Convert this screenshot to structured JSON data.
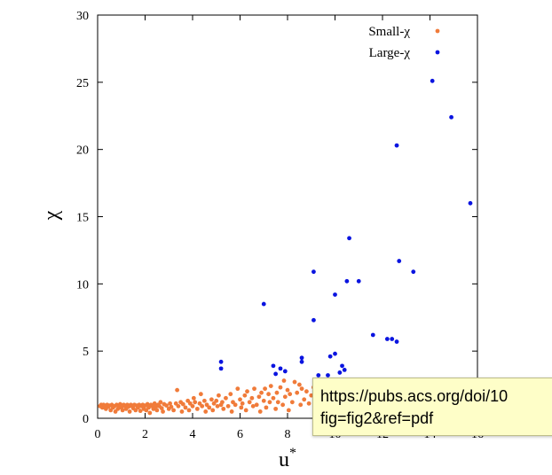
{
  "chart_data": {
    "type": "scatter",
    "xlabel": "u",
    "xlabel_superscript": "*",
    "ylabel": "χ",
    "xlim": [
      0,
      16
    ],
    "ylim": [
      0,
      30
    ],
    "xticks": [
      "0",
      "2",
      "4",
      "6",
      "8",
      "10",
      "12",
      "14",
      "16"
    ],
    "yticks": [
      "0",
      "5",
      "10",
      "15",
      "20",
      "25",
      "30"
    ],
    "grid": false,
    "legend_position": "top-right",
    "series": [
      {
        "name": "Small-χ",
        "color": "#f07b3a",
        "points": [
          [
            0.1,
            0.9
          ],
          [
            0.15,
            1.0
          ],
          [
            0.2,
            0.8
          ],
          [
            0.25,
            1.0
          ],
          [
            0.3,
            0.9
          ],
          [
            0.35,
            0.7
          ],
          [
            0.4,
            1.0
          ],
          [
            0.45,
            0.85
          ],
          [
            0.5,
            0.95
          ],
          [
            0.55,
            0.6
          ],
          [
            0.6,
            1.0
          ],
          [
            0.65,
            0.8
          ],
          [
            0.7,
            0.9
          ],
          [
            0.75,
            0.5
          ],
          [
            0.8,
            1.0
          ],
          [
            0.85,
            0.7
          ],
          [
            0.9,
            0.9
          ],
          [
            0.95,
            1.05
          ],
          [
            1.0,
            0.8
          ],
          [
            1.05,
            0.6
          ],
          [
            1.1,
            1.0
          ],
          [
            1.15,
            0.9
          ],
          [
            1.2,
            0.7
          ],
          [
            1.25,
            1.0
          ],
          [
            1.3,
            0.85
          ],
          [
            1.35,
            0.5
          ],
          [
            1.4,
            1.0
          ],
          [
            1.45,
            0.9
          ],
          [
            1.5,
            0.75
          ],
          [
            1.55,
            1.0
          ],
          [
            1.6,
            0.6
          ],
          [
            1.65,
            0.95
          ],
          [
            1.7,
            0.8
          ],
          [
            1.75,
            1.0
          ],
          [
            1.8,
            0.55
          ],
          [
            1.85,
            0.9
          ],
          [
            1.9,
            1.0
          ],
          [
            1.95,
            0.7
          ],
          [
            2.0,
            0.95
          ],
          [
            2.05,
            0.6
          ],
          [
            2.1,
            1.05
          ],
          [
            2.15,
            0.8
          ],
          [
            2.2,
            0.4
          ],
          [
            2.25,
            1.0
          ],
          [
            2.3,
            0.9
          ],
          [
            2.35,
            0.7
          ],
          [
            2.4,
            1.1
          ],
          [
            2.45,
            0.85
          ],
          [
            2.5,
            0.6
          ],
          [
            2.55,
            1.0
          ],
          [
            2.6,
            0.9
          ],
          [
            2.65,
            1.2
          ],
          [
            2.7,
            0.75
          ],
          [
            2.75,
            0.5
          ],
          [
            2.8,
            1.05
          ],
          [
            2.9,
            0.95
          ],
          [
            3.0,
            0.7
          ],
          [
            3.05,
            1.1
          ],
          [
            3.1,
            0.85
          ],
          [
            3.2,
            0.6
          ],
          [
            3.3,
            1.1
          ],
          [
            3.35,
            2.1
          ],
          [
            3.4,
            0.9
          ],
          [
            3.5,
            1.2
          ],
          [
            3.55,
            0.5
          ],
          [
            3.6,
            1.05
          ],
          [
            3.7,
            0.8
          ],
          [
            3.8,
            1.3
          ],
          [
            3.85,
            0.6
          ],
          [
            3.9,
            1.1
          ],
          [
            4.0,
            0.9
          ],
          [
            4.05,
            1.5
          ],
          [
            4.1,
            1.2
          ],
          [
            4.2,
            0.7
          ],
          [
            4.3,
            1.1
          ],
          [
            4.35,
            1.8
          ],
          [
            4.4,
            0.9
          ],
          [
            4.5,
            1.3
          ],
          [
            4.55,
            0.5
          ],
          [
            4.6,
            1.0
          ],
          [
            4.7,
            0.8
          ],
          [
            4.8,
            1.4
          ],
          [
            4.85,
            0.6
          ],
          [
            4.9,
            1.1
          ],
          [
            5.0,
            1.3
          ],
          [
            5.05,
            0.9
          ],
          [
            5.1,
            1.7
          ],
          [
            5.2,
            1.0
          ],
          [
            5.25,
            1.2
          ],
          [
            5.3,
            0.7
          ],
          [
            5.4,
            1.5
          ],
          [
            5.5,
            0.9
          ],
          [
            5.6,
            1.8
          ],
          [
            5.65,
            0.5
          ],
          [
            5.7,
            1.2
          ],
          [
            5.8,
            1.0
          ],
          [
            5.9,
            2.2
          ],
          [
            6.0,
            1.4
          ],
          [
            6.05,
            0.8
          ],
          [
            6.1,
            1.1
          ],
          [
            6.2,
            1.7
          ],
          [
            6.25,
            0.6
          ],
          [
            6.3,
            2.0
          ],
          [
            6.4,
            1.2
          ],
          [
            6.5,
            1.5
          ],
          [
            6.55,
            0.9
          ],
          [
            6.6,
            2.2
          ],
          [
            6.7,
            1.0
          ],
          [
            6.8,
            1.6
          ],
          [
            6.85,
            0.5
          ],
          [
            6.9,
            1.9
          ],
          [
            7.0,
            1.3
          ],
          [
            7.05,
            2.2
          ],
          [
            7.1,
            0.8
          ],
          [
            7.2,
            1.8
          ],
          [
            7.25,
            1.2
          ],
          [
            7.3,
            2.4
          ],
          [
            7.4,
            1.5
          ],
          [
            7.5,
            0.7
          ],
          [
            7.55,
            1.9
          ],
          [
            7.6,
            1.2
          ],
          [
            7.7,
            2.3
          ],
          [
            7.8,
            1.0
          ],
          [
            7.85,
            2.8
          ],
          [
            7.9,
            1.6
          ],
          [
            8.0,
            2.1
          ],
          [
            8.05,
            0.6
          ],
          [
            8.1,
            1.8
          ],
          [
            8.2,
            1.2
          ],
          [
            8.3,
            2.7
          ],
          [
            8.4,
            1.9
          ],
          [
            8.5,
            2.5
          ],
          [
            8.55,
            1.0
          ],
          [
            8.6,
            2.2
          ],
          [
            8.7,
            1.4
          ],
          [
            8.8,
            2.0
          ],
          [
            8.9,
            1.1
          ],
          [
            9.0,
            1.7
          ],
          [
            9.1,
            2.3
          ],
          [
            9.2,
            1.4
          ]
        ]
      },
      {
        "name": "Large-χ",
        "color": "#0a14e0",
        "points": [
          [
            5.2,
            4.2
          ],
          [
            5.2,
            3.7
          ],
          [
            7.0,
            8.5
          ],
          [
            7.4,
            3.9
          ],
          [
            7.5,
            3.3
          ],
          [
            7.7,
            3.7
          ],
          [
            7.9,
            3.5
          ],
          [
            8.6,
            4.5
          ],
          [
            8.6,
            4.2
          ],
          [
            9.1,
            10.9
          ],
          [
            9.1,
            7.3
          ],
          [
            9.3,
            3.2
          ],
          [
            9.7,
            3.2
          ],
          [
            9.8,
            4.6
          ],
          [
            10.0,
            9.2
          ],
          [
            10.0,
            4.8
          ],
          [
            10.2,
            3.4
          ],
          [
            10.3,
            3.9
          ],
          [
            10.4,
            3.6
          ],
          [
            10.5,
            10.2
          ],
          [
            10.6,
            13.4
          ],
          [
            11.0,
            10.2
          ],
          [
            11.6,
            6.2
          ],
          [
            12.2,
            5.9
          ],
          [
            12.4,
            5.9
          ],
          [
            12.6,
            20.3
          ],
          [
            12.7,
            11.7
          ],
          [
            12.6,
            5.7
          ],
          [
            13.3,
            10.9
          ],
          [
            14.1,
            25.1
          ],
          [
            14.9,
            22.4
          ],
          [
            15.7,
            16.0
          ]
        ]
      }
    ]
  },
  "tooltip": {
    "line1": "https://pubs.acs.org/doi/10",
    "line2": "fig=fig2&ref=pdf"
  }
}
